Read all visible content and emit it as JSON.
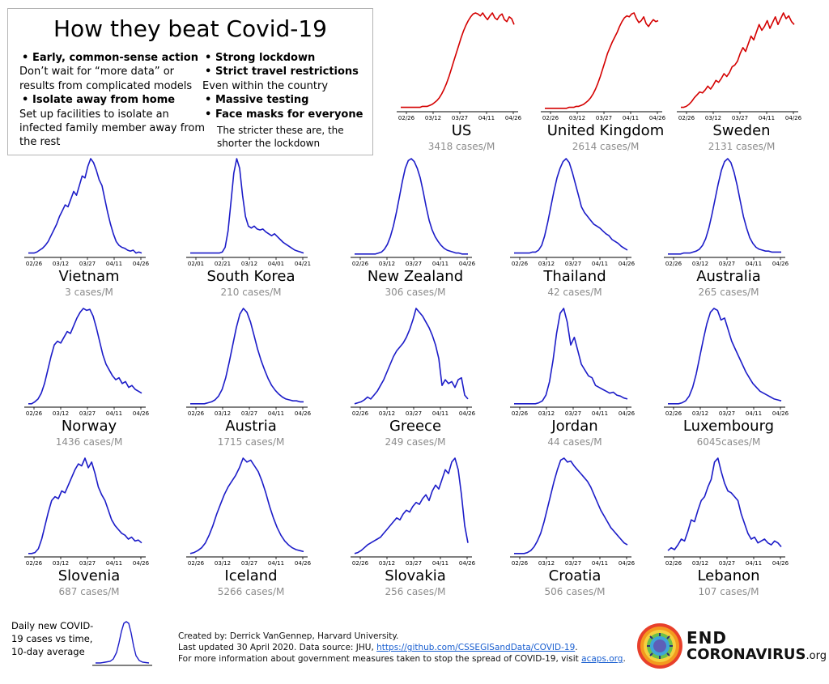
{
  "title": "How they beat Covid-19",
  "tips": {
    "left": [
      {
        "heading": "Early, common-sense action",
        "body": "Don’t wait for “more data” or results from complicated models"
      },
      {
        "heading": "Isolate away from home",
        "body": "Set up facilities to isolate an infected family member away from the rest"
      }
    ],
    "right": [
      {
        "heading": "Strong lockdown",
        "body": ""
      },
      {
        "heading": "Strict travel restrictions",
        "body": "Even within the country"
      },
      {
        "heading": "Massive testing",
        "body": ""
      },
      {
        "heading": "Face masks for everyone",
        "body": ""
      }
    ],
    "note": "The stricter these are, the shorter the lockdown"
  },
  "colors": {
    "red": "#d40000",
    "blue": "#1c1cc8",
    "gray_text": "#8c8c8c",
    "box_border": "#b4b4b4",
    "link": "#1a5fd0"
  },
  "legend": {
    "text": "Daily new COVID-19 cases vs time, 10-day average"
  },
  "credits": {
    "line1": "Created by: Derrick VanGennep, Harvard University.",
    "line2": "Last updated 30 April 2020. Data source: JHU,",
    "line2_link": "https://github.com/CSSEGISandData/COVID-19",
    "line2_end": ".",
    "line3": "For more information about government measures taken to stop the spread of COVID-19, visit",
    "line3_link": "acaps.org",
    "line3_end": "."
  },
  "logo": {
    "line1": "END",
    "line2": "CORONAVIRUS",
    "suffix": ".org",
    "icon": "coronavirus-globe-icon"
  },
  "chart_data": [
    {
      "type": "line",
      "title": "US",
      "subtitle": "3418 cases/M",
      "color": "red",
      "ticks": [
        "02/26",
        "03/12",
        "03/27",
        "04/11",
        "04/26"
      ],
      "x_start": "02/20",
      "values": [
        0.02,
        0.02,
        0.02,
        0.02,
        0.02,
        0.02,
        0.02,
        0.02,
        0.02,
        0.03,
        0.03,
        0.03,
        0.04,
        0.05,
        0.07,
        0.09,
        0.12,
        0.16,
        0.21,
        0.27,
        0.34,
        0.42,
        0.5,
        0.58,
        0.66,
        0.74,
        0.81,
        0.87,
        0.92,
        0.96,
        0.99,
        1,
        0.99,
        0.97,
        1,
        0.96,
        0.93,
        0.97,
        1,
        0.95,
        0.93,
        0.97,
        0.99,
        0.93,
        0.91,
        0.96,
        0.94,
        0.88
      ]
    },
    {
      "type": "line",
      "title": "United Kingdom",
      "subtitle": "2614 cases/M",
      "color": "red",
      "ticks": [
        "02/26",
        "03/12",
        "03/27",
        "04/11",
        "04/26"
      ],
      "x_start": "02/20",
      "values": [
        0.01,
        0.01,
        0.01,
        0.01,
        0.01,
        0.01,
        0.01,
        0.01,
        0.01,
        0.01,
        0.02,
        0.02,
        0.02,
        0.03,
        0.03,
        0.04,
        0.05,
        0.07,
        0.09,
        0.12,
        0.16,
        0.21,
        0.27,
        0.34,
        0.42,
        0.5,
        0.58,
        0.64,
        0.7,
        0.75,
        0.8,
        0.86,
        0.91,
        0.95,
        0.97,
        0.96,
        0.99,
        1,
        0.94,
        0.9,
        0.92,
        0.96,
        0.89,
        0.86,
        0.9,
        0.93,
        0.91,
        0.92
      ]
    },
    {
      "type": "line",
      "title": "Sweden",
      "subtitle": "2131 cases/M",
      "color": "red",
      "ticks": [
        "02/26",
        "03/12",
        "03/27",
        "04/11",
        "04/26"
      ],
      "x_start": "02/20",
      "values": [
        0.02,
        0.02,
        0.03,
        0.05,
        0.08,
        0.12,
        0.15,
        0.18,
        0.17,
        0.2,
        0.24,
        0.21,
        0.25,
        0.3,
        0.28,
        0.32,
        0.37,
        0.34,
        0.38,
        0.44,
        0.46,
        0.5,
        0.58,
        0.64,
        0.6,
        0.68,
        0.76,
        0.72,
        0.8,
        0.88,
        0.82,
        0.86,
        0.92,
        0.84,
        0.9,
        0.96,
        0.88,
        0.94,
        1,
        0.94,
        0.97,
        0.91,
        0.88
      ]
    },
    {
      "type": "line",
      "title": "Vietnam",
      "subtitle": "3 cases/M",
      "color": "blue",
      "ticks": [
        "02/26",
        "03/12",
        "03/27",
        "04/11",
        "04/26"
      ],
      "x_start": "02/20",
      "values": [
        0.02,
        0.02,
        0.02,
        0.03,
        0.05,
        0.07,
        0.1,
        0.14,
        0.2,
        0.26,
        0.32,
        0.4,
        0.46,
        0.52,
        0.5,
        0.58,
        0.66,
        0.62,
        0.72,
        0.82,
        0.8,
        0.92,
        1,
        0.96,
        0.88,
        0.78,
        0.72,
        0.58,
        0.44,
        0.32,
        0.22,
        0.14,
        0.1,
        0.08,
        0.07,
        0.05,
        0.04,
        0.05,
        0.02,
        0.03,
        0.02
      ]
    },
    {
      "type": "line",
      "title": "South Korea",
      "subtitle": "210 cases/M",
      "color": "blue",
      "ticks": [
        "02/01",
        "02/21",
        "03/12",
        "04/01",
        "04/21"
      ],
      "x_start": "01/25",
      "values": [
        0.02,
        0.02,
        0.02,
        0.02,
        0.02,
        0.02,
        0.02,
        0.02,
        0.02,
        0.02,
        0.02,
        0.03,
        0.08,
        0.25,
        0.55,
        0.85,
        1,
        0.9,
        0.62,
        0.4,
        0.3,
        0.28,
        0.3,
        0.27,
        0.26,
        0.27,
        0.24,
        0.22,
        0.2,
        0.22,
        0.19,
        0.16,
        0.13,
        0.11,
        0.09,
        0.07,
        0.05,
        0.04,
        0.03,
        0.02
      ]
    },
    {
      "type": "line",
      "title": "New Zealand",
      "subtitle": "306 cases/M",
      "color": "blue",
      "ticks": [
        "02/26",
        "03/12",
        "03/27",
        "04/11",
        "04/26"
      ],
      "x_start": "02/20",
      "values": [
        0.01,
        0.01,
        0.01,
        0.01,
        0.01,
        0.01,
        0.01,
        0.01,
        0.02,
        0.03,
        0.06,
        0.11,
        0.19,
        0.3,
        0.44,
        0.6,
        0.76,
        0.9,
        0.98,
        1,
        0.97,
        0.9,
        0.8,
        0.66,
        0.5,
        0.36,
        0.26,
        0.19,
        0.14,
        0.1,
        0.07,
        0.05,
        0.04,
        0.03,
        0.02,
        0.02,
        0.01,
        0.01,
        0.01
      ]
    },
    {
      "type": "line",
      "title": "Thailand",
      "subtitle": "42 cases/M",
      "color": "blue",
      "ticks": [
        "02/26",
        "03/12",
        "03/27",
        "04/11",
        "04/26"
      ],
      "x_start": "02/20",
      "values": [
        0.02,
        0.02,
        0.02,
        0.02,
        0.02,
        0.02,
        0.03,
        0.03,
        0.05,
        0.1,
        0.2,
        0.34,
        0.5,
        0.66,
        0.8,
        0.9,
        0.97,
        1,
        0.96,
        0.86,
        0.74,
        0.62,
        0.5,
        0.44,
        0.4,
        0.36,
        0.32,
        0.3,
        0.28,
        0.25,
        0.22,
        0.2,
        0.16,
        0.14,
        0.12,
        0.09,
        0.07,
        0.05
      ]
    },
    {
      "type": "line",
      "title": "Australia",
      "subtitle": "265 cases/M",
      "color": "blue",
      "ticks": [
        "02/26",
        "03/12",
        "03/27",
        "04/11",
        "04/26"
      ],
      "x_start": "02/20",
      "values": [
        0.01,
        0.01,
        0.01,
        0.01,
        0.01,
        0.02,
        0.02,
        0.02,
        0.03,
        0.04,
        0.06,
        0.1,
        0.17,
        0.28,
        0.42,
        0.58,
        0.74,
        0.88,
        0.97,
        1,
        0.96,
        0.86,
        0.72,
        0.56,
        0.4,
        0.28,
        0.18,
        0.12,
        0.08,
        0.06,
        0.05,
        0.04,
        0.04,
        0.03,
        0.03,
        0.03,
        0.03
      ]
    },
    {
      "type": "line",
      "title": "Norway",
      "subtitle": "1436 cases/M",
      "color": "blue",
      "ticks": [
        "02/26",
        "03/12",
        "03/27",
        "04/11",
        "04/26"
      ],
      "x_start": "02/20",
      "values": [
        0.01,
        0.01,
        0.03,
        0.06,
        0.12,
        0.22,
        0.36,
        0.5,
        0.62,
        0.66,
        0.64,
        0.7,
        0.76,
        0.74,
        0.82,
        0.9,
        0.96,
        1,
        0.98,
        0.99,
        0.92,
        0.8,
        0.66,
        0.52,
        0.42,
        0.36,
        0.3,
        0.26,
        0.28,
        0.22,
        0.24,
        0.18,
        0.2,
        0.16,
        0.14,
        0.12
      ]
    },
    {
      "type": "line",
      "title": "Austria",
      "subtitle": "1715 cases/M",
      "color": "blue",
      "ticks": [
        "02/26",
        "03/12",
        "03/27",
        "04/11",
        "04/26"
      ],
      "x_start": "02/20",
      "values": [
        0.01,
        0.01,
        0.01,
        0.01,
        0.01,
        0.02,
        0.03,
        0.05,
        0.09,
        0.16,
        0.28,
        0.44,
        0.62,
        0.8,
        0.94,
        1,
        0.96,
        0.86,
        0.72,
        0.58,
        0.46,
        0.36,
        0.27,
        0.2,
        0.15,
        0.11,
        0.08,
        0.06,
        0.05,
        0.04,
        0.04,
        0.03,
        0.03
      ]
    },
    {
      "type": "line",
      "title": "Greece",
      "subtitle": "249 cases/M",
      "color": "blue",
      "ticks": [
        "02/26",
        "03/12",
        "03/27",
        "04/11",
        "04/26"
      ],
      "x_start": "02/20",
      "values": [
        0.01,
        0.02,
        0.03,
        0.05,
        0.08,
        0.06,
        0.1,
        0.14,
        0.2,
        0.26,
        0.34,
        0.42,
        0.5,
        0.56,
        0.6,
        0.64,
        0.7,
        0.78,
        0.88,
        1,
        0.96,
        0.92,
        0.86,
        0.8,
        0.72,
        0.62,
        0.48,
        0.2,
        0.26,
        0.22,
        0.24,
        0.18,
        0.26,
        0.28,
        0.1,
        0.06
      ]
    },
    {
      "type": "line",
      "title": "Jordan",
      "subtitle": "44 cases/M",
      "color": "blue",
      "ticks": [
        "02/26",
        "03/12",
        "03/27",
        "04/11",
        "04/26"
      ],
      "x_start": "02/20",
      "values": [
        0.01,
        0.01,
        0.01,
        0.01,
        0.01,
        0.01,
        0.01,
        0.02,
        0.04,
        0.1,
        0.24,
        0.46,
        0.74,
        0.95,
        1,
        0.86,
        0.62,
        0.7,
        0.56,
        0.42,
        0.36,
        0.3,
        0.28,
        0.2,
        0.18,
        0.16,
        0.14,
        0.12,
        0.13,
        0.1,
        0.09,
        0.07,
        0.06
      ]
    },
    {
      "type": "line",
      "title": "Luxembourg",
      "subtitle": "6045cases/M",
      "color": "blue",
      "ticks": [
        "02/26",
        "03/12",
        "03/27",
        "04/11",
        "04/26"
      ],
      "x_start": "02/20",
      "values": [
        0.01,
        0.01,
        0.01,
        0.01,
        0.02,
        0.04,
        0.09,
        0.18,
        0.32,
        0.5,
        0.68,
        0.84,
        0.96,
        1,
        0.98,
        0.88,
        0.9,
        0.78,
        0.66,
        0.58,
        0.5,
        0.42,
        0.34,
        0.28,
        0.22,
        0.18,
        0.14,
        0.12,
        0.1,
        0.08,
        0.06,
        0.05,
        0.04
      ]
    },
    {
      "type": "line",
      "title": "Slovenia",
      "subtitle": "687 cases/M",
      "color": "blue",
      "ticks": [
        "02/26",
        "03/12",
        "03/27",
        "04/11",
        "04/26"
      ],
      "x_start": "02/20",
      "values": [
        0.01,
        0.01,
        0.02,
        0.06,
        0.16,
        0.3,
        0.44,
        0.56,
        0.6,
        0.58,
        0.66,
        0.64,
        0.72,
        0.8,
        0.88,
        0.94,
        0.92,
        1,
        0.9,
        0.96,
        0.84,
        0.7,
        0.62,
        0.56,
        0.46,
        0.36,
        0.3,
        0.26,
        0.22,
        0.2,
        0.16,
        0.18,
        0.14,
        0.15,
        0.12
      ]
    },
    {
      "type": "line",
      "title": "Iceland",
      "subtitle": "5266 cases/M",
      "color": "blue",
      "ticks": [
        "02/26",
        "03/12",
        "03/27",
        "04/11",
        "04/26"
      ],
      "x_start": "02/20",
      "values": [
        0.01,
        0.02,
        0.04,
        0.07,
        0.12,
        0.2,
        0.3,
        0.42,
        0.52,
        0.62,
        0.7,
        0.76,
        0.82,
        0.9,
        1,
        0.96,
        0.98,
        0.92,
        0.86,
        0.76,
        0.64,
        0.5,
        0.38,
        0.28,
        0.2,
        0.14,
        0.1,
        0.07,
        0.05,
        0.04,
        0.03
      ]
    },
    {
      "type": "line",
      "title": "Slovakia",
      "subtitle": "256 cases/M",
      "color": "blue",
      "ticks": [
        "02/26",
        "03/12",
        "03/27",
        "04/11",
        "04/26"
      ],
      "x_start": "02/20",
      "values": [
        0.01,
        0.02,
        0.04,
        0.07,
        0.1,
        0.12,
        0.14,
        0.16,
        0.18,
        0.22,
        0.26,
        0.3,
        0.34,
        0.38,
        0.36,
        0.42,
        0.46,
        0.44,
        0.5,
        0.54,
        0.52,
        0.58,
        0.62,
        0.56,
        0.66,
        0.72,
        0.68,
        0.78,
        0.88,
        0.84,
        0.96,
        1,
        0.88,
        0.62,
        0.3,
        0.12
      ]
    },
    {
      "type": "line",
      "title": "Croatia",
      "subtitle": "506 cases/M",
      "color": "blue",
      "ticks": [
        "02/26",
        "03/12",
        "03/27",
        "04/11",
        "04/26"
      ],
      "x_start": "02/20",
      "values": [
        0.01,
        0.01,
        0.01,
        0.01,
        0.02,
        0.04,
        0.08,
        0.14,
        0.22,
        0.34,
        0.48,
        0.62,
        0.76,
        0.88,
        0.98,
        1,
        0.96,
        0.97,
        0.92,
        0.88,
        0.84,
        0.8,
        0.76,
        0.7,
        0.62,
        0.54,
        0.46,
        0.4,
        0.34,
        0.28,
        0.24,
        0.2,
        0.16,
        0.12,
        0.1
      ]
    },
    {
      "type": "line",
      "title": "Lebanon",
      "subtitle": "107 cases/M",
      "color": "blue",
      "ticks": [
        "02/26",
        "03/12",
        "03/27",
        "04/11",
        "04/26"
      ],
      "x_start": "02/20",
      "values": [
        0.04,
        0.07,
        0.05,
        0.1,
        0.16,
        0.14,
        0.24,
        0.36,
        0.34,
        0.46,
        0.56,
        0.6,
        0.7,
        0.78,
        0.96,
        1,
        0.86,
        0.74,
        0.66,
        0.64,
        0.6,
        0.56,
        0.42,
        0.32,
        0.22,
        0.16,
        0.18,
        0.12,
        0.14,
        0.16,
        0.12,
        0.1,
        0.14,
        0.12,
        0.08
      ]
    }
  ]
}
